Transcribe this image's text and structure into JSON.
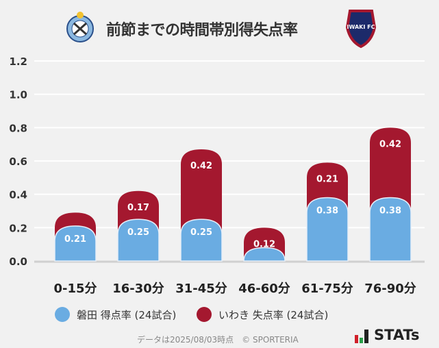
{
  "title": "前節までの時間帯別得失点率",
  "logos": {
    "left": "Jubilo Iwata crest",
    "right": "IWAKI FC crest",
    "right_text": "IWAKI FC"
  },
  "colors": {
    "home": "#6aace2",
    "away": "#a4182f"
  },
  "chart_data": {
    "type": "bar",
    "stacked": true,
    "categories": [
      "0-15分",
      "16-30分",
      "31-45分",
      "46-60分",
      "61-75分",
      "76-90分"
    ],
    "series": [
      {
        "name": "磐田 得点率 (24試合)",
        "values": [
          0.21,
          0.25,
          0.25,
          0.08,
          0.38,
          0.38
        ],
        "labels": [
          "0.21",
          "0.25",
          "0.25",
          "",
          "0.38",
          "0.38"
        ]
      },
      {
        "name": "いわき 失点率 (24試合)",
        "values": [
          0.08,
          0.17,
          0.42,
          0.12,
          0.21,
          0.42
        ],
        "labels": [
          "",
          "0.17",
          "0.42",
          "0.12",
          "0.21",
          "0.42"
        ]
      }
    ],
    "yticks": [
      "0.0",
      "0.2",
      "0.4",
      "0.6",
      "0.8",
      "1.0",
      "1.2"
    ],
    "ylim": [
      0,
      1.2
    ],
    "grid": true,
    "legend": "bottom"
  },
  "footnote": "データは2025/08/03時点　© SPORTERIA",
  "brand": "STATs"
}
